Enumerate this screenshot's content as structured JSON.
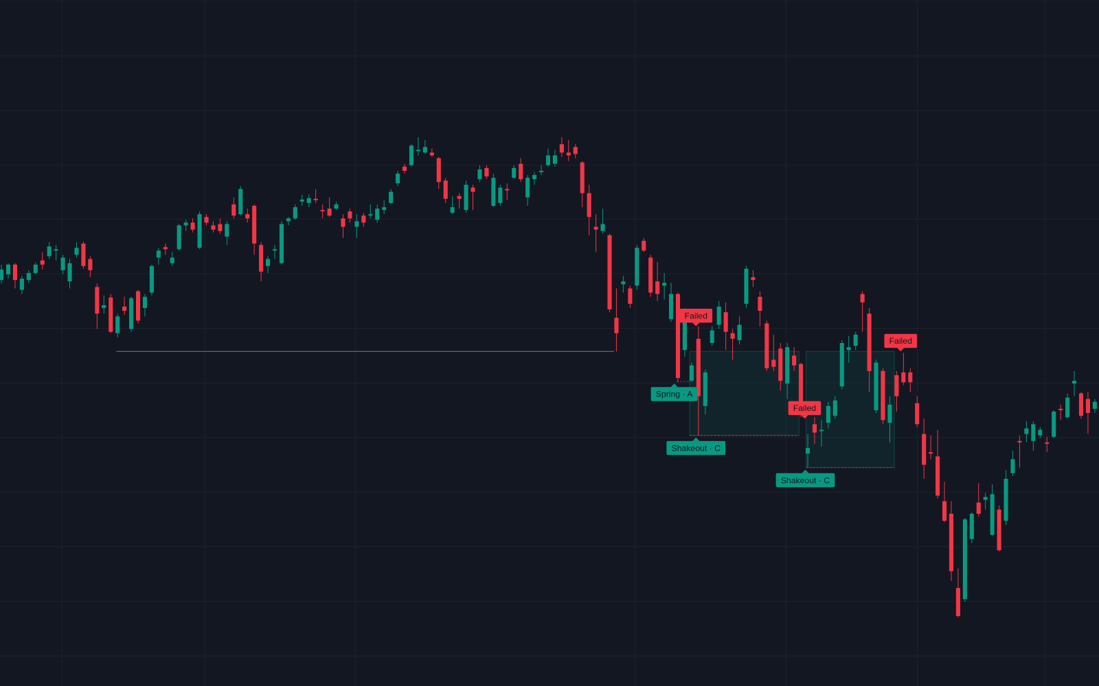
{
  "chart_data": {
    "type": "candlestick",
    "up_color": "#089981",
    "down_color": "#f23645",
    "ylim": [
      20,
      1000
    ],
    "open": [
      600,
      608,
      622,
      586,
      600,
      610,
      628,
      634,
      642,
      614,
      598,
      636,
      652,
      630,
      590,
      560,
      575,
      524,
      562,
      530,
      584,
      560,
      582,
      632,
      647,
      624,
      644,
      678,
      682,
      646,
      690,
      678,
      680,
      662,
      708,
      694,
      694,
      706,
      650,
      620,
      642,
      624,
      684,
      688,
      712,
      710,
      716,
      700,
      702,
      702,
      688,
      698,
      676,
      692,
      692,
      686,
      700,
      710,
      738,
      762,
      764,
      784,
      782,
      782,
      774,
      742,
      696,
      720,
      700,
      732,
      744,
      760,
      706,
      710,
      730,
      746,
      766,
      718,
      744,
      754,
      764,
      766,
      794,
      782,
      790,
      768,
      724,
      676,
      670,
      664,
      546,
      594,
      588,
      592,
      656,
      632,
      598,
      592,
      544,
      580,
      500,
      456,
      516,
      420,
      510,
      536,
      554,
      524,
      514,
      566,
      604,
      576,
      538,
      486,
      502,
      452,
      492,
      480,
      352,
      394,
      384,
      396,
      406,
      448,
      500,
      506,
      580,
      552,
      414,
      470,
      396,
      464,
      468,
      468,
      424,
      380,
      354,
      348,
      284,
      266,
      160,
      144,
      230,
      282,
      286,
      236,
      272,
      256,
      324,
      370,
      380,
      370,
      378,
      368,
      376,
      416,
      404,
      452,
      438,
      430,
      416
    ],
    "high": [
      622,
      624,
      624,
      606,
      614,
      625,
      640,
      654,
      650,
      636,
      630,
      654,
      655,
      634,
      595,
      578,
      580,
      552,
      576,
      576,
      586,
      580,
      622,
      646,
      652,
      640,
      680,
      686,
      688,
      698,
      694,
      684,
      688,
      684,
      718,
      734,
      702,
      708,
      654,
      634,
      650,
      684,
      690,
      708,
      722,
      722,
      730,
      708,
      718,
      712,
      694,
      702,
      694,
      696,
      708,
      708,
      714,
      730,
      756,
      766,
      794,
      804,
      800,
      788,
      776,
      746,
      720,
      724,
      742,
      736,
      764,
      764,
      752,
      736,
      738,
      764,
      774,
      750,
      754,
      764,
      788,
      786,
      804,
      800,
      794,
      770,
      736,
      694,
      702,
      666,
      588,
      606,
      592,
      650,
      660,
      636,
      626,
      610,
      596,
      582,
      560,
      482,
      534,
      472,
      534,
      570,
      568,
      530,
      548,
      620,
      614,
      584,
      542,
      522,
      510,
      510,
      504,
      482,
      380,
      404,
      400,
      426,
      434,
      514,
      520,
      526,
      584,
      560,
      486,
      474,
      434,
      470,
      496,
      474,
      434,
      402,
      378,
      386,
      312,
      284,
      188,
      260,
      268,
      310,
      296,
      308,
      278,
      328,
      356,
      378,
      398,
      398,
      390,
      376,
      414,
      422,
      438,
      470,
      440,
      440,
      430
    ],
    "low": [
      595,
      602,
      588,
      580,
      596,
      608,
      615,
      630,
      628,
      608,
      588,
      632,
      616,
      604,
      530,
      552,
      524,
      518,
      550,
      526,
      538,
      548,
      578,
      622,
      636,
      620,
      642,
      670,
      668,
      644,
      678,
      668,
      666,
      650,
      688,
      692,
      682,
      636,
      598,
      610,
      630,
      622,
      678,
      686,
      706,
      704,
      710,
      688,
      690,
      700,
      660,
      682,
      660,
      676,
      688,
      682,
      694,
      708,
      734,
      752,
      762,
      778,
      780,
      776,
      730,
      710,
      694,
      702,
      696,
      700,
      740,
      744,
      704,
      706,
      714,
      744,
      740,
      706,
      736,
      750,
      762,
      762,
      776,
      770,
      774,
      704,
      664,
      640,
      666,
      554,
      498,
      582,
      560,
      586,
      640,
      576,
      570,
      572,
      540,
      454,
      490,
      454,
      378,
      408,
      506,
      530,
      500,
      486,
      508,
      560,
      590,
      534,
      470,
      470,
      442,
      430,
      470,
      404,
      332,
      366,
      362,
      388,
      402,
      444,
      482,
      500,
      526,
      440,
      410,
      394,
      368,
      412,
      450,
      440,
      390,
      316,
      344,
      288,
      254,
      170,
      118,
      140,
      224,
      262,
      272,
      234,
      212,
      250,
      320,
      332,
      368,
      356,
      374,
      354,
      374,
      400,
      402,
      434,
      402,
      380,
      410
    ],
    "close": [
      615,
      622,
      600,
      602,
      610,
      622,
      622,
      648,
      644,
      632,
      624,
      646,
      620,
      614,
      552,
      564,
      526,
      548,
      556,
      574,
      542,
      576,
      620,
      642,
      644,
      632,
      678,
      682,
      672,
      694,
      682,
      672,
      670,
      680,
      692,
      730,
      688,
      652,
      612,
      630,
      644,
      680,
      688,
      704,
      715,
      717,
      714,
      698,
      692,
      708,
      676,
      688,
      684,
      682,
      694,
      702,
      704,
      726,
      752,
      756,
      792,
      786,
      790,
      778,
      740,
      716,
      704,
      716,
      736,
      726,
      758,
      748,
      746,
      732,
      728,
      760,
      744,
      746,
      750,
      756,
      778,
      778,
      782,
      778,
      780,
      724,
      690,
      672,
      680,
      558,
      524,
      598,
      566,
      646,
      642,
      582,
      580,
      596,
      580,
      460,
      550,
      478,
      434,
      468,
      528,
      562,
      526,
      516,
      536,
      616,
      600,
      556,
      474,
      476,
      456,
      504,
      478,
      424,
      360,
      382,
      386,
      420,
      428,
      510,
      504,
      522,
      568,
      470,
      482,
      400,
      422,
      434,
      454,
      454,
      394,
      336,
      352,
      292,
      256,
      184,
      120,
      258,
      266,
      266,
      290,
      294,
      214,
      316,
      344,
      368,
      388,
      394,
      386,
      366,
      412,
      414,
      432,
      456,
      406,
      410,
      426
    ],
    "support_level": 498,
    "zones": [
      {
        "top": 498,
        "bottom": 378
      },
      {
        "top": 498,
        "bottom": 332
      }
    ],
    "annotations": [
      {
        "text": "Failed",
        "color": "#f23645"
      },
      {
        "text": "Spring · A",
        "color": "#089981"
      },
      {
        "text": "Shakeout · C",
        "color": "#089981"
      },
      {
        "text": "Failed",
        "color": "#f23645"
      },
      {
        "text": "Shakeout · C",
        "color": "#089981"
      },
      {
        "text": "Failed",
        "color": "#f23645"
      }
    ]
  }
}
